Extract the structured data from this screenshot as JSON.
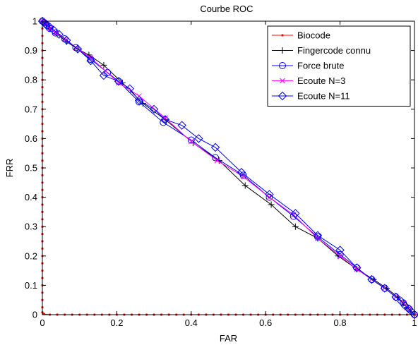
{
  "chart_data": {
    "type": "line",
    "title": "Courbe ROC",
    "xlabel": "FAR",
    "ylabel": "FRR",
    "xlim": [
      0,
      1
    ],
    "ylim": [
      0,
      1
    ],
    "xticks": [
      "0",
      "0.2",
      "0.4",
      "0.6",
      "0.8",
      "1"
    ],
    "yticks": [
      "0",
      "0.1",
      "0.2",
      "0.3",
      "0.4",
      "0.5",
      "0.6",
      "0.7",
      "0.8",
      "0.9",
      "1"
    ],
    "grid": false,
    "legend_position": "top-right",
    "series": [
      {
        "name": "Biocode",
        "color": "#ff0000",
        "marker": "dot",
        "x": [
          0,
          0,
          0,
          0,
          0,
          0,
          0,
          0,
          0,
          0,
          0,
          0,
          0,
          0,
          0,
          0,
          0,
          0,
          0,
          0,
          0,
          0,
          0,
          0,
          0,
          0,
          0,
          0,
          0,
          0,
          0,
          0,
          0,
          0,
          0,
          0,
          0,
          0,
          0,
          0,
          0,
          0.002,
          0.005,
          0.02,
          0.04,
          0.06,
          0.08,
          0.1,
          0.12,
          0.14,
          0.16,
          0.18,
          0.2,
          0.22,
          0.24,
          0.26,
          0.28,
          0.3,
          0.32,
          0.34,
          0.36,
          0.38,
          0.4,
          0.42,
          0.44,
          0.46,
          0.48,
          0.5,
          0.52,
          0.54,
          0.56,
          0.58,
          0.6,
          0.62,
          0.64,
          0.66,
          0.68,
          0.7,
          0.72,
          0.74,
          0.76,
          0.78,
          0.8,
          0.82,
          0.84,
          0.86,
          0.88,
          0.9,
          0.92,
          0.94,
          0.96,
          0.98,
          1.0
        ],
        "y": [
          1,
          0.975,
          0.95,
          0.925,
          0.9,
          0.875,
          0.85,
          0.825,
          0.8,
          0.775,
          0.75,
          0.725,
          0.7,
          0.675,
          0.65,
          0.625,
          0.6,
          0.575,
          0.55,
          0.525,
          0.5,
          0.475,
          0.45,
          0.425,
          0.4,
          0.375,
          0.35,
          0.325,
          0.3,
          0.275,
          0.25,
          0.225,
          0.2,
          0.175,
          0.15,
          0.125,
          0.1,
          0.075,
          0.05,
          0.025,
          0.008,
          0.004,
          0.002,
          0,
          0,
          0,
          0,
          0,
          0,
          0,
          0,
          0,
          0,
          0,
          0,
          0,
          0,
          0,
          0,
          0,
          0,
          0,
          0,
          0,
          0,
          0,
          0,
          0,
          0,
          0,
          0,
          0,
          0,
          0,
          0,
          0,
          0,
          0,
          0,
          0,
          0,
          0,
          0,
          0,
          0,
          0,
          0,
          0,
          0,
          0,
          0,
          0,
          0
        ]
      },
      {
        "name": "Fingercode connu",
        "color": "#000000",
        "marker": "plus",
        "x": [
          0,
          0.005,
          0.01,
          0.02,
          0.04,
          0.065,
          0.095,
          0.125,
          0.165,
          0.215,
          0.27,
          0.33,
          0.405,
          0.475,
          0.545,
          0.615,
          0.68,
          0.74,
          0.795,
          0.845,
          0.89,
          0.925,
          0.955,
          0.97,
          0.98,
          0.99,
          1.0
        ],
        "y": [
          1,
          0.995,
          0.99,
          0.975,
          0.955,
          0.93,
          0.905,
          0.885,
          0.85,
          0.79,
          0.72,
          0.665,
          0.585,
          0.525,
          0.44,
          0.375,
          0.3,
          0.26,
          0.2,
          0.155,
          0.12,
          0.09,
          0.06,
          0.04,
          0.025,
          0.01,
          0
        ]
      },
      {
        "name": "Force brute",
        "color": "#0000ff",
        "marker": "circle",
        "x": [
          0,
          0.005,
          0.01,
          0.02,
          0.035,
          0.06,
          0.09,
          0.13,
          0.175,
          0.205,
          0.26,
          0.325,
          0.4,
          0.465,
          0.54,
          0.61,
          0.675,
          0.74,
          0.8,
          0.845,
          0.885,
          0.92,
          0.95,
          0.97,
          0.985,
          1.0
        ],
        "y": [
          1,
          0.995,
          0.99,
          0.975,
          0.96,
          0.94,
          0.91,
          0.87,
          0.825,
          0.795,
          0.725,
          0.655,
          0.595,
          0.535,
          0.475,
          0.4,
          0.335,
          0.265,
          0.205,
          0.16,
          0.12,
          0.09,
          0.06,
          0.04,
          0.02,
          0
        ]
      },
      {
        "name": "Ecoute N=3",
        "color": "#ff00ff",
        "marker": "x",
        "x": [
          0,
          0.005,
          0.01,
          0.02,
          0.035,
          0.06,
          0.09,
          0.13,
          0.17,
          0.205,
          0.26,
          0.33,
          0.4,
          0.47,
          0.54,
          0.61,
          0.675,
          0.74,
          0.8,
          0.845,
          0.885,
          0.92,
          0.95,
          0.97,
          0.985,
          1.0
        ],
        "y": [
          1,
          0.995,
          0.99,
          0.975,
          0.96,
          0.94,
          0.91,
          0.875,
          0.83,
          0.79,
          0.745,
          0.67,
          0.59,
          0.525,
          0.47,
          0.4,
          0.34,
          0.26,
          0.2,
          0.155,
          0.12,
          0.09,
          0.06,
          0.04,
          0.02,
          0
        ]
      },
      {
        "name": "Ecoute N=11",
        "color": "#0000ff",
        "marker": "diamond",
        "x": [
          0,
          0.005,
          0.012,
          0.02,
          0.03,
          0.045,
          0.065,
          0.095,
          0.13,
          0.165,
          0.205,
          0.235,
          0.26,
          0.3,
          0.33,
          0.375,
          0.42,
          0.465,
          0.535,
          0.61,
          0.68,
          0.74,
          0.8,
          0.845,
          0.885,
          0.92,
          0.95,
          0.965,
          0.975,
          0.985,
          0.992,
          1.0
        ],
        "y": [
          1,
          0.995,
          0.985,
          0.98,
          0.97,
          0.955,
          0.935,
          0.905,
          0.865,
          0.815,
          0.795,
          0.77,
          0.73,
          0.7,
          0.665,
          0.645,
          0.6,
          0.57,
          0.485,
          0.41,
          0.345,
          0.27,
          0.22,
          0.16,
          0.12,
          0.09,
          0.06,
          0.045,
          0.03,
          0.02,
          0.01,
          0
        ]
      }
    ]
  }
}
